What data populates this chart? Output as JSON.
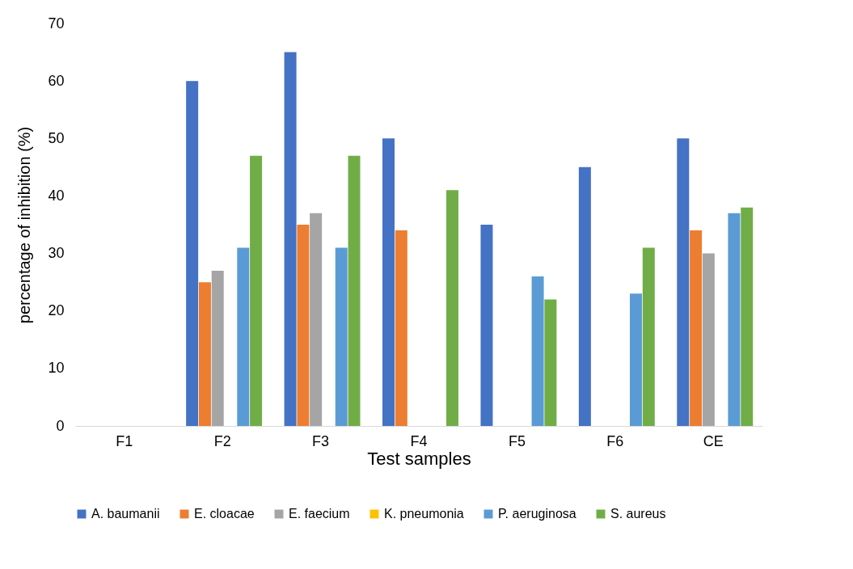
{
  "chart_data": {
    "type": "bar",
    "xlabel": "Test samples",
    "ylabel": "percentage of inhibition (%)",
    "categories": [
      "F1",
      "F2",
      "F3",
      "F4",
      "F5",
      "F6",
      "CE"
    ],
    "series": [
      {
        "name": "A. baumanii",
        "color": "#4472c4",
        "values": [
          0,
          60,
          65,
          50,
          35,
          45,
          50
        ]
      },
      {
        "name": "E. cloacae",
        "color": "#ed7d31",
        "values": [
          0,
          25,
          35,
          34,
          0,
          0,
          34
        ]
      },
      {
        "name": "E. faecium",
        "color": "#a5a5a5",
        "values": [
          0,
          27,
          37,
          0,
          0,
          0,
          30
        ]
      },
      {
        "name": "K. pneumonia",
        "color": "#ffc000",
        "values": [
          0,
          0,
          0,
          0,
          0,
          0,
          0
        ]
      },
      {
        "name": "P. aeruginosa",
        "color": "#5b9bd5",
        "values": [
          0,
          31,
          31,
          0,
          26,
          23,
          37
        ]
      },
      {
        "name": "S. aureus",
        "color": "#70ad47",
        "values": [
          0,
          47,
          47,
          41,
          22,
          31,
          38
        ]
      }
    ],
    "ylim": [
      0,
      70
    ],
    "yticks": [
      0,
      10,
      20,
      30,
      40,
      50,
      60,
      70
    ],
    "grid": false,
    "legend": "bottom"
  }
}
